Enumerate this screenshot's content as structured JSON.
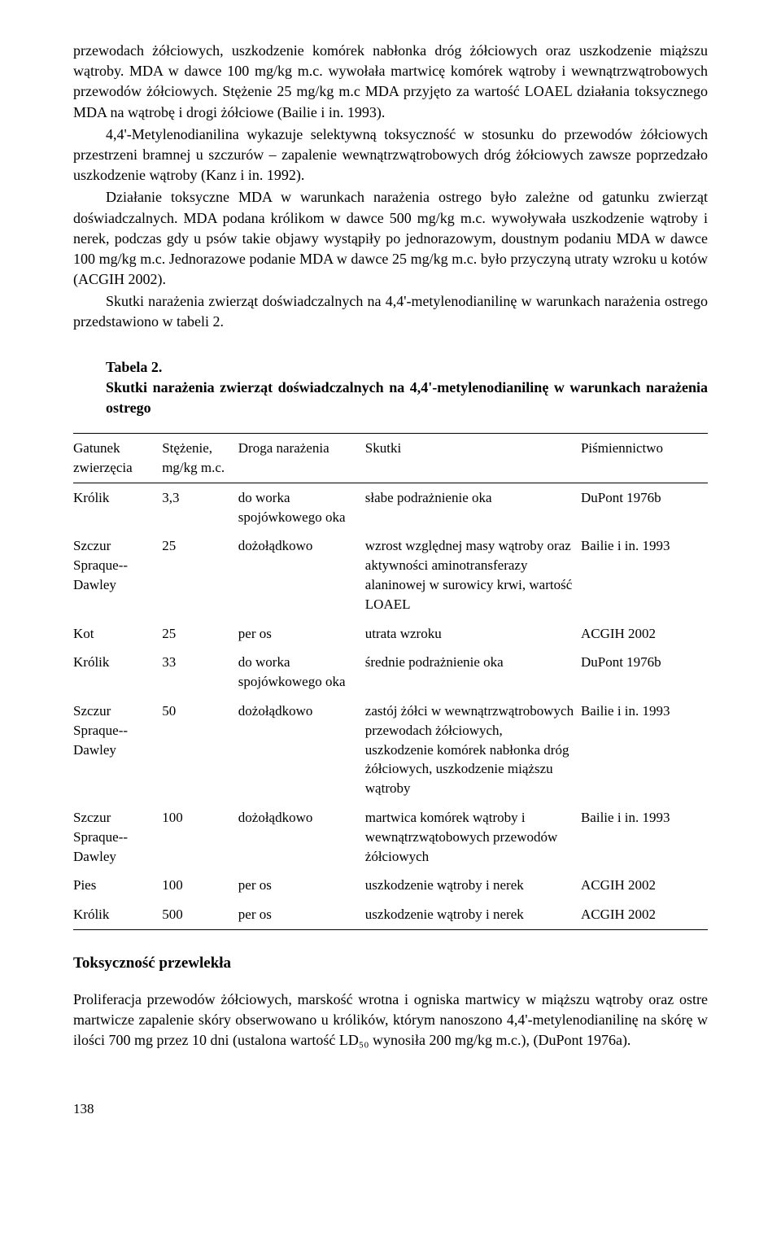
{
  "paragraphs": {
    "p1": "przewodach żółciowych, uszkodzenie komórek nabłonka dróg żółciowych oraz uszkodzenie miąższu wątroby. MDA w dawce 100 mg/kg m.c. wywołała martwicę komórek wątroby i wewnątrzwątrobowych przewodów żółciowych. Stężenie 25 mg/kg m.c MDA przyjęto za wartość LOAEL działania toksycznego MDA na wątrobę i drogi żółciowe (Bailie i in. 1993).",
    "p2": "4,4'-Metylenodianilina wykazuje selektywną toksyczność w stosunku do przewodów żółciowych przestrzeni bramnej u szczurów – zapalenie wewnątrzwątrobowych dróg żółciowych zawsze poprzedzało uszkodzenie wątroby (Kanz i in. 1992).",
    "p3": "Działanie toksyczne MDA w warunkach narażenia ostrego było zależne od gatunku zwierząt doświadczalnych. MDA podana królikom w dawce 500 mg/kg m.c. wywoływała uszkodzenie wątroby i nerek, podczas gdy u psów takie objawy wystąpiły po jednorazowym, doustnym podaniu MDA w dawce 100 mg/kg m.c. Jednorazowe podanie MDA w dawce 25 mg/kg m.c. było przyczyną utraty wzroku u kotów (ACGIH 2002).",
    "p4": "Skutki narażenia zwierząt doświadczalnych na 4,4'-metylenodianilinę w warunkach narażenia ostrego przedstawiono w tabeli 2."
  },
  "table_title": {
    "label": "Tabela 2.",
    "caption": "Skutki narażenia zwierząt doświadczalnych na 4,4'-metylenodianilinę w warunkach narażenia ostrego"
  },
  "table": {
    "headers": {
      "species": "Gatunek zwierzęcia",
      "dose": "Stężenie, mg/kg m.c.",
      "route": "Droga narażenia",
      "effects": "Skutki",
      "ref": "Piśmiennictwo"
    },
    "rows": [
      {
        "species": "Królik",
        "dose": "3,3",
        "route": "do worka spojówkowego oka",
        "effects": "słabe podrażnienie oka",
        "ref": "DuPont 1976b"
      },
      {
        "species": "Szczur Spraque--Dawley",
        "dose": "25",
        "route": "dożołądkowo",
        "effects": "wzrost względnej masy wątroby oraz aktywności aminotransferazy alaninowej w surowicy krwi, wartość LOAEL",
        "ref": "Bailie i in. 1993"
      },
      {
        "species": "Kot",
        "dose": "25",
        "route": "per os",
        "effects": "utrata wzroku",
        "ref": "ACGIH 2002"
      },
      {
        "species": "Królik",
        "dose": "33",
        "route": "do worka spojówkowego oka",
        "effects": "średnie podrażnienie oka",
        "ref": "DuPont 1976b"
      },
      {
        "species": "Szczur Spraque--Dawley",
        "dose": "50",
        "route": "dożołądkowo",
        "effects": "zastój żółci w wewnątrzwątrobowych przewodach żółciowych, uszkodzenie komórek nabłonka dróg żółciowych, uszkodzenie miąższu wątroby",
        "ref": "Bailie i in. 1993"
      },
      {
        "species": "Szczur Spraque--Dawley",
        "dose": "100",
        "route": "dożołądkowo",
        "effects": "martwica komórek wątroby i wewnątrzwątobowych przewodów żółciowych",
        "ref": "Bailie i in. 1993"
      },
      {
        "species": "Pies",
        "dose": "100",
        "route": "per os",
        "effects": "uszkodzenie wątroby i nerek",
        "ref": "ACGIH 2002"
      },
      {
        "species": "Królik",
        "dose": "500",
        "route": "per os",
        "effects": "uszkodzenie wątroby i nerek",
        "ref": "ACGIH 2002"
      }
    ]
  },
  "chronic": {
    "heading": "Toksyczność przewlekła",
    "p1": "Proliferacja przewodów żółciowych, marskość wrotna i ogniska martwicy w miąższu wątroby oraz ostre martwicze zapalenie skóry obserwowano u królików, którym nanoszono 4,4'-metylenodianilinę na skórę w ilości 700 mg przez 10 dni (ustalona wartość LD₅₀ wynosiła 200 mg/kg m.c.), (DuPont 1976a)."
  },
  "page_number": "138"
}
